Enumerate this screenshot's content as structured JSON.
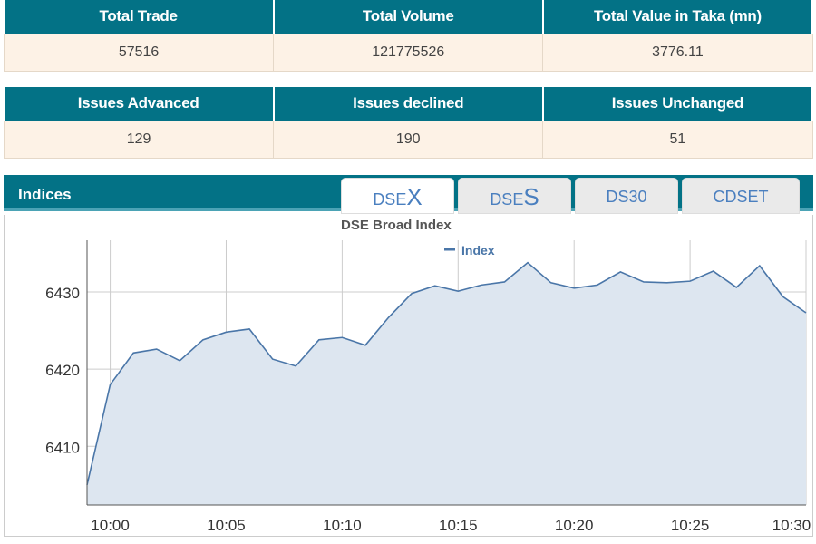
{
  "summary1": {
    "headers": [
      "Total Trade",
      "Total Volume",
      "Total Value in Taka (mn)"
    ],
    "values": [
      "57516",
      "121775526",
      "3776.11"
    ]
  },
  "summary2": {
    "headers": [
      "Issues Advanced",
      "Issues declined",
      "Issues Unchanged"
    ],
    "values": [
      "129",
      "190",
      "51"
    ]
  },
  "indices": {
    "title": "Indices",
    "tabs": [
      {
        "prefix": "DSE",
        "suffix": "X"
      },
      {
        "prefix": "DSE",
        "suffix": "S"
      },
      {
        "prefix": "DS30",
        "suffix": ""
      },
      {
        "prefix": "CDSET",
        "suffix": ""
      }
    ],
    "active_tab": 0
  },
  "chart_data": {
    "type": "area",
    "title": "DSE Broad Index",
    "legend": [
      "Index"
    ],
    "legend_placement": "top",
    "line_color": "#4a76a8",
    "fill_color": "#dde6f0",
    "grid": true,
    "x": [
      "9:59",
      "10:00",
      "10:01",
      "10:02",
      "10:03",
      "10:04",
      "10:05",
      "10:06",
      "10:07",
      "10:08",
      "10:09",
      "10:10",
      "10:11",
      "10:12",
      "10:13",
      "10:14",
      "10:15",
      "10:16",
      "10:17",
      "10:18",
      "10:19",
      "10:20",
      "10:21",
      "10:22",
      "10:23",
      "10:24",
      "10:25",
      "10:26",
      "10:27",
      "10:28",
      "10:29",
      "10:30"
    ],
    "values": [
      6405.0,
      6418.0,
      6422.1,
      6422.6,
      6421.1,
      6423.8,
      6424.8,
      6425.2,
      6421.3,
      6420.4,
      6423.8,
      6424.1,
      6423.1,
      6426.7,
      6429.8,
      6430.8,
      6430.1,
      6430.9,
      6431.3,
      6433.8,
      6431.2,
      6430.5,
      6430.9,
      6432.6,
      6431.3,
      6431.2,
      6431.4,
      6432.7,
      6430.6,
      6433.4,
      6429.4,
      6427.3
    ],
    "xticks": [
      "10:00",
      "10:05",
      "10:10",
      "10:15",
      "10:20",
      "10:25",
      "10:30"
    ],
    "yticks": [
      6410,
      6420,
      6430
    ],
    "ylim": [
      6402.4,
      6436.7
    ]
  }
}
